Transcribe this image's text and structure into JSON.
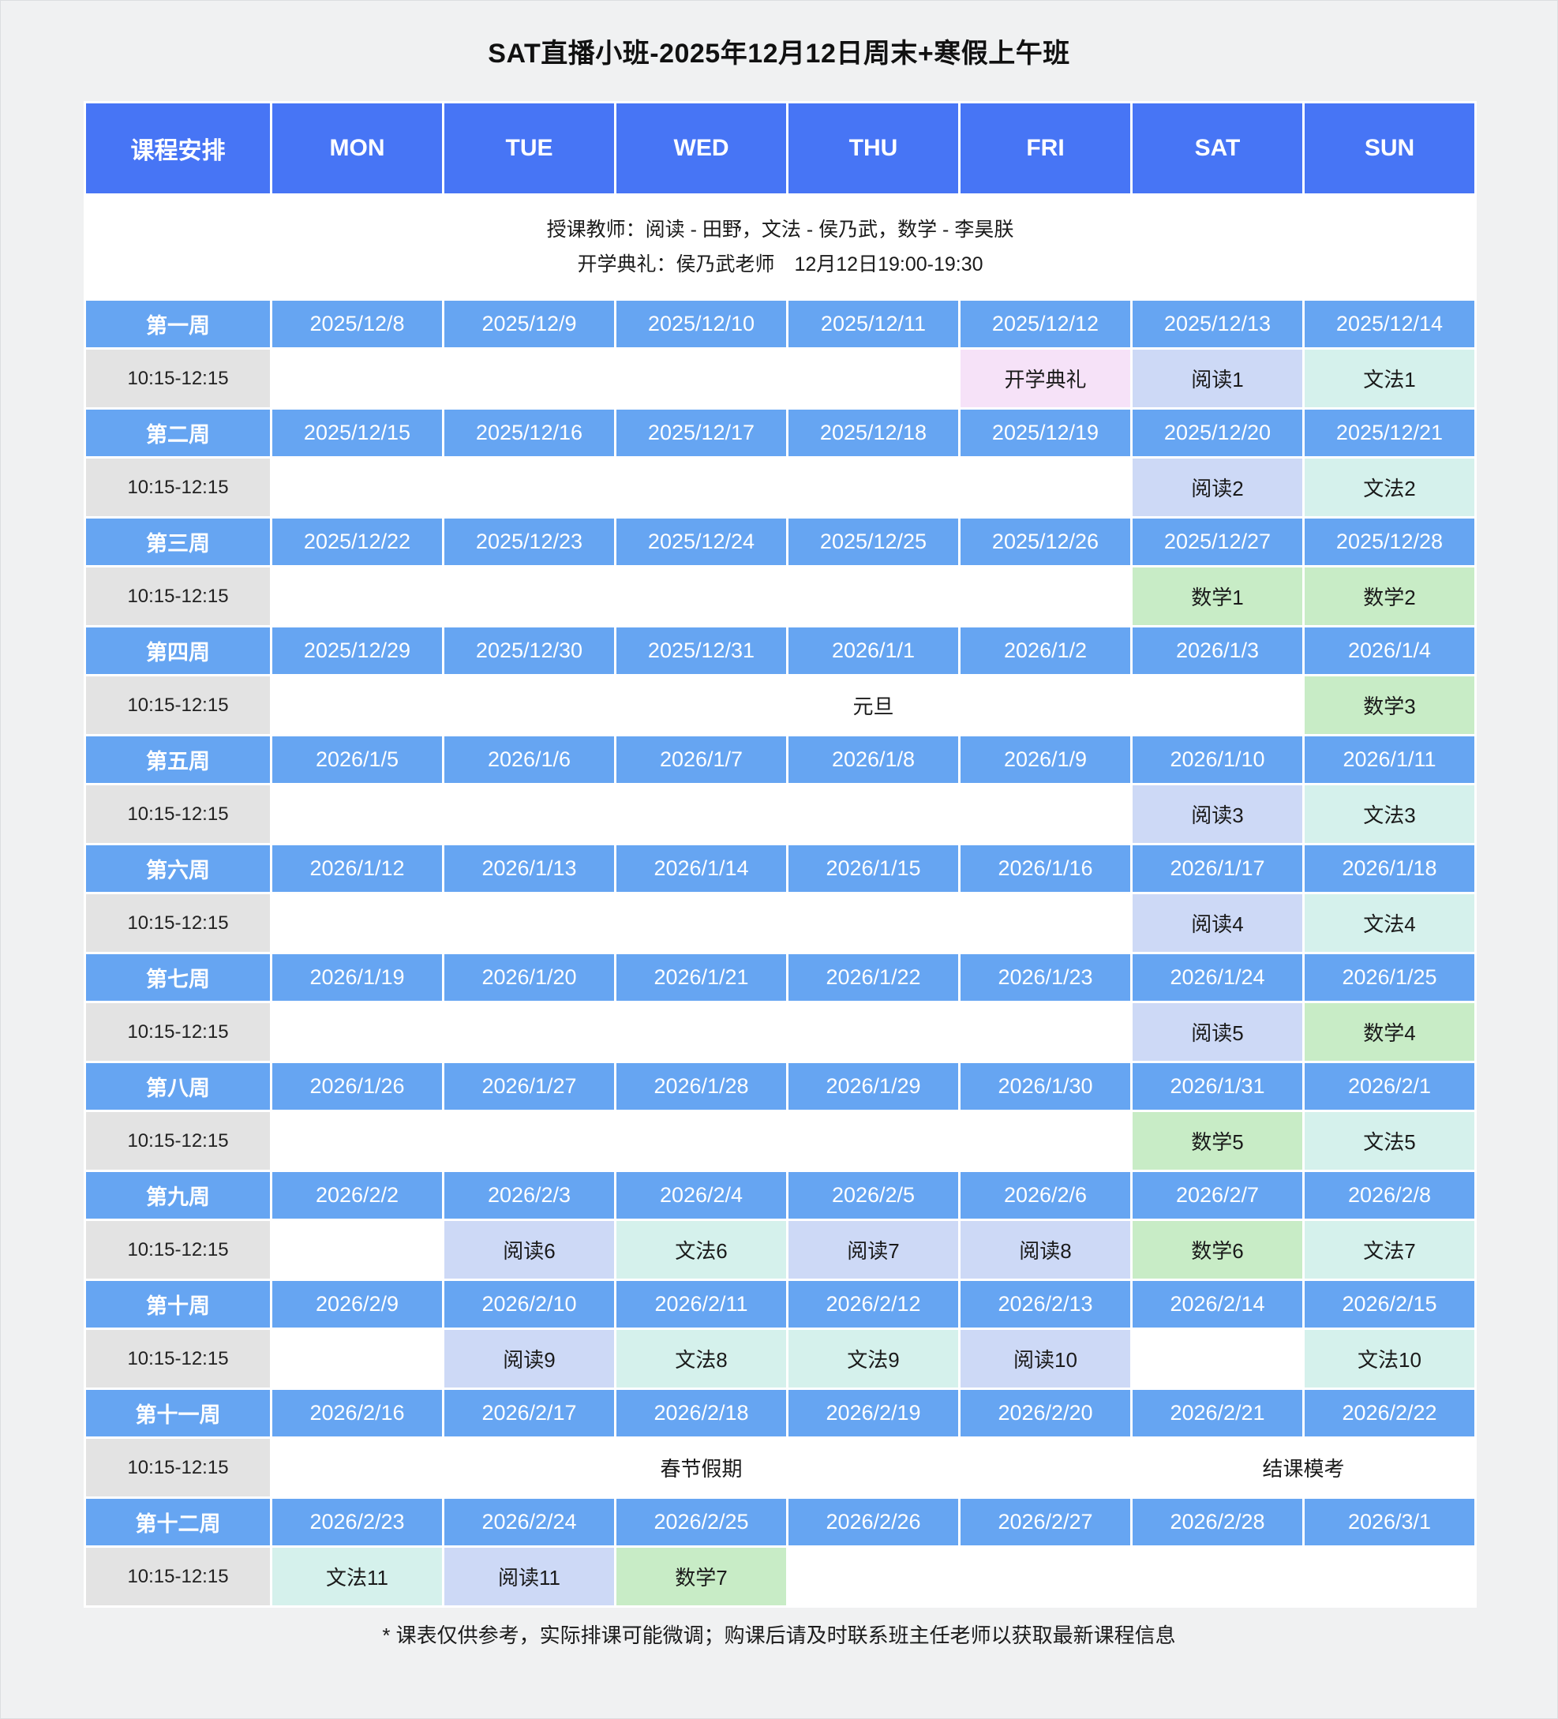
{
  "title": "SAT直播小班-2025年12月12日周末+寒假上午班",
  "header": {
    "schedule_label": "课程安排",
    "days": [
      "MON",
      "TUE",
      "WED",
      "THU",
      "FRI",
      "SAT",
      "SUN"
    ]
  },
  "info": {
    "teachers_line": "授课教师：阅读 - 田野，文法 - 侯乃武，数学 - 李昊朕",
    "ceremony_line": "开学典礼：侯乃武老师　12月12日19:00-19:30"
  },
  "time_slot": "10:15-12:15",
  "colors": {
    "header_blue": "#4775f5",
    "week_blue": "#66a5f2",
    "time_gray": "#e3e3e3",
    "band_gray": "#f0f1f2",
    "ceremony_pink": "#f6e2f8",
    "reading_blue": "#cdd9f6",
    "grammar_mint": "#d5f1ec",
    "math_green": "#c8ecc6"
  },
  "weeks": [
    {
      "label": "第一周",
      "dates": [
        "2025/12/8",
        "2025/12/9",
        "2025/12/10",
        "2025/12/11",
        "2025/12/12",
        "2025/12/13",
        "2025/12/14"
      ],
      "cells": [
        {
          "text": "",
          "type": "empty",
          "span": 1
        },
        {
          "text": "",
          "type": "empty",
          "span": 1
        },
        {
          "text": "",
          "type": "empty",
          "span": 1
        },
        {
          "text": "",
          "type": "empty",
          "span": 1
        },
        {
          "text": "开学典礼",
          "type": "ceremony",
          "span": 1
        },
        {
          "text": "阅读1",
          "type": "reading",
          "span": 1
        },
        {
          "text": "文法1",
          "type": "grammar",
          "span": 1
        }
      ]
    },
    {
      "label": "第二周",
      "dates": [
        "2025/12/15",
        "2025/12/16",
        "2025/12/17",
        "2025/12/18",
        "2025/12/19",
        "2025/12/20",
        "2025/12/21"
      ],
      "cells": [
        {
          "text": "",
          "type": "empty",
          "span": 1
        },
        {
          "text": "",
          "type": "empty",
          "span": 1
        },
        {
          "text": "",
          "type": "empty",
          "span": 1
        },
        {
          "text": "",
          "type": "empty",
          "span": 1
        },
        {
          "text": "",
          "type": "empty",
          "span": 1
        },
        {
          "text": "阅读2",
          "type": "reading",
          "span": 1
        },
        {
          "text": "文法2",
          "type": "grammar",
          "span": 1
        }
      ]
    },
    {
      "label": "第三周",
      "dates": [
        "2025/12/22",
        "2025/12/23",
        "2025/12/24",
        "2025/12/25",
        "2025/12/26",
        "2025/12/27",
        "2025/12/28"
      ],
      "cells": [
        {
          "text": "",
          "type": "empty",
          "span": 1
        },
        {
          "text": "",
          "type": "empty",
          "span": 1
        },
        {
          "text": "",
          "type": "empty",
          "span": 1
        },
        {
          "text": "",
          "type": "empty",
          "span": 1
        },
        {
          "text": "",
          "type": "empty",
          "span": 1
        },
        {
          "text": "数学1",
          "type": "math",
          "span": 1
        },
        {
          "text": "数学2",
          "type": "math",
          "span": 1
        }
      ]
    },
    {
      "label": "第四周",
      "dates": [
        "2025/12/29",
        "2025/12/30",
        "2025/12/31",
        "2026/1/1",
        "2026/1/2",
        "2026/1/3",
        "2026/1/4"
      ],
      "cells": [
        {
          "text": "",
          "type": "empty",
          "span": 1
        },
        {
          "text": "",
          "type": "empty",
          "span": 1
        },
        {
          "text": "",
          "type": "empty",
          "span": 1
        },
        {
          "text": "元旦",
          "type": "holiday",
          "span": 1
        },
        {
          "text": "",
          "type": "empty",
          "span": 1
        },
        {
          "text": "",
          "type": "empty",
          "span": 1
        },
        {
          "text": "数学3",
          "type": "math",
          "span": 1
        }
      ]
    },
    {
      "label": "第五周",
      "dates": [
        "2026/1/5",
        "2026/1/6",
        "2026/1/7",
        "2026/1/8",
        "2026/1/9",
        "2026/1/10",
        "2026/1/11"
      ],
      "cells": [
        {
          "text": "",
          "type": "empty",
          "span": 1
        },
        {
          "text": "",
          "type": "empty",
          "span": 1
        },
        {
          "text": "",
          "type": "empty",
          "span": 1
        },
        {
          "text": "",
          "type": "empty",
          "span": 1
        },
        {
          "text": "",
          "type": "empty",
          "span": 1
        },
        {
          "text": "阅读3",
          "type": "reading",
          "span": 1
        },
        {
          "text": "文法3",
          "type": "grammar",
          "span": 1
        }
      ]
    },
    {
      "label": "第六周",
      "dates": [
        "2026/1/12",
        "2026/1/13",
        "2026/1/14",
        "2026/1/15",
        "2026/1/16",
        "2026/1/17",
        "2026/1/18"
      ],
      "cells": [
        {
          "text": "",
          "type": "empty",
          "span": 1
        },
        {
          "text": "",
          "type": "empty",
          "span": 1
        },
        {
          "text": "",
          "type": "empty",
          "span": 1
        },
        {
          "text": "",
          "type": "empty",
          "span": 1
        },
        {
          "text": "",
          "type": "empty",
          "span": 1
        },
        {
          "text": "阅读4",
          "type": "reading",
          "span": 1
        },
        {
          "text": "文法4",
          "type": "grammar",
          "span": 1
        }
      ]
    },
    {
      "label": "第七周",
      "dates": [
        "2026/1/19",
        "2026/1/20",
        "2026/1/21",
        "2026/1/22",
        "2026/1/23",
        "2026/1/24",
        "2026/1/25"
      ],
      "cells": [
        {
          "text": "",
          "type": "empty",
          "span": 1
        },
        {
          "text": "",
          "type": "empty",
          "span": 1
        },
        {
          "text": "",
          "type": "empty",
          "span": 1
        },
        {
          "text": "",
          "type": "empty",
          "span": 1
        },
        {
          "text": "",
          "type": "empty",
          "span": 1
        },
        {
          "text": "阅读5",
          "type": "reading",
          "span": 1
        },
        {
          "text": "数学4",
          "type": "math",
          "span": 1
        }
      ]
    },
    {
      "label": "第八周",
      "dates": [
        "2026/1/26",
        "2026/1/27",
        "2026/1/28",
        "2026/1/29",
        "2026/1/30",
        "2026/1/31",
        "2026/2/1"
      ],
      "cells": [
        {
          "text": "",
          "type": "empty",
          "span": 1
        },
        {
          "text": "",
          "type": "empty",
          "span": 1
        },
        {
          "text": "",
          "type": "empty",
          "span": 1
        },
        {
          "text": "",
          "type": "empty",
          "span": 1
        },
        {
          "text": "",
          "type": "empty",
          "span": 1
        },
        {
          "text": "数学5",
          "type": "math",
          "span": 1
        },
        {
          "text": "文法5",
          "type": "grammar",
          "span": 1
        }
      ]
    },
    {
      "label": "第九周",
      "dates": [
        "2026/2/2",
        "2026/2/3",
        "2026/2/4",
        "2026/2/5",
        "2026/2/6",
        "2026/2/7",
        "2026/2/8"
      ],
      "cells": [
        {
          "text": "",
          "type": "empty",
          "span": 1
        },
        {
          "text": "阅读6",
          "type": "reading",
          "span": 1
        },
        {
          "text": "文法6",
          "type": "grammar",
          "span": 1
        },
        {
          "text": "阅读7",
          "type": "reading",
          "span": 1
        },
        {
          "text": "阅读8",
          "type": "reading",
          "span": 1
        },
        {
          "text": "数学6",
          "type": "math",
          "span": 1
        },
        {
          "text": "文法7",
          "type": "grammar",
          "span": 1
        }
      ]
    },
    {
      "label": "第十周",
      "dates": [
        "2026/2/9",
        "2026/2/10",
        "2026/2/11",
        "2026/2/12",
        "2026/2/13",
        "2026/2/14",
        "2026/2/15"
      ],
      "cells": [
        {
          "text": "",
          "type": "empty",
          "span": 1
        },
        {
          "text": "阅读9",
          "type": "reading",
          "span": 1
        },
        {
          "text": "文法8",
          "type": "grammar",
          "span": 1
        },
        {
          "text": "文法9",
          "type": "grammar",
          "span": 1
        },
        {
          "text": "阅读10",
          "type": "reading",
          "span": 1
        },
        {
          "text": "",
          "type": "empty",
          "span": 1
        },
        {
          "text": "文法10",
          "type": "grammar",
          "span": 1
        }
      ]
    },
    {
      "label": "第十一周",
      "dates": [
        "2026/2/16",
        "2026/2/17",
        "2026/2/18",
        "2026/2/19",
        "2026/2/20",
        "2026/2/21",
        "2026/2/22"
      ],
      "cells": [
        {
          "text": "",
          "type": "empty",
          "span": 1
        },
        {
          "text": "",
          "type": "empty",
          "span": 1
        },
        {
          "text": "春节假期",
          "type": "holiday",
          "span": 1
        },
        {
          "text": "",
          "type": "empty",
          "span": 1
        },
        {
          "text": "",
          "type": "empty",
          "span": 1
        },
        {
          "text": "结课模考",
          "type": "exam",
          "span": 2
        }
      ]
    },
    {
      "label": "第十二周",
      "dates": [
        "2026/2/23",
        "2026/2/24",
        "2026/2/25",
        "2026/2/26",
        "2026/2/27",
        "2026/2/28",
        "2026/3/1"
      ],
      "cells": [
        {
          "text": "文法11",
          "type": "grammar",
          "span": 1
        },
        {
          "text": "阅读11",
          "type": "reading",
          "span": 1
        },
        {
          "text": "数学7",
          "type": "math",
          "span": 1
        },
        {
          "text": "",
          "type": "empty",
          "span": 1
        },
        {
          "text": "",
          "type": "empty",
          "span": 1
        },
        {
          "text": "",
          "type": "empty",
          "span": 1
        },
        {
          "text": "",
          "type": "empty",
          "span": 1
        }
      ]
    }
  ],
  "footer": {
    "note": "* 课表仅供参考，实际排课可能微调；购课后请及时联系班主任老师以获取最新课程信息"
  }
}
